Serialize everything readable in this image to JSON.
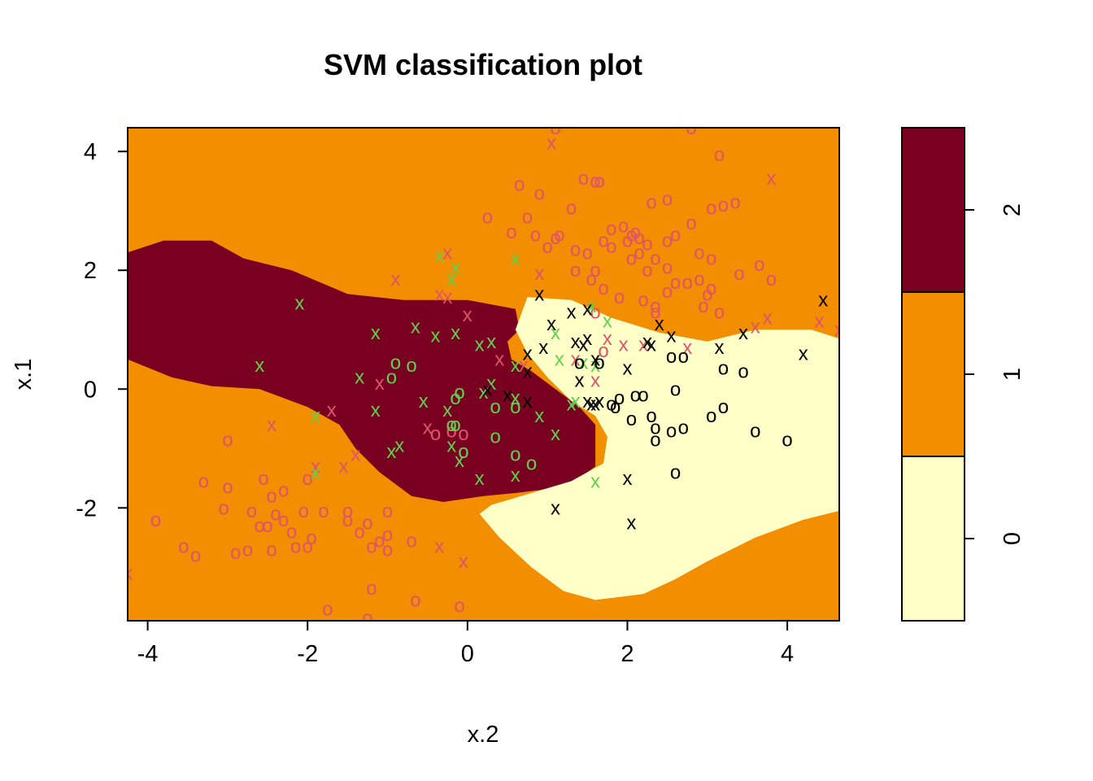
{
  "chart_data": {
    "type": "scatter",
    "title": "SVM classification plot",
    "xlabel": "x.2",
    "ylabel": "x.1",
    "xlim": [
      -4.25,
      4.65
    ],
    "ylim": [
      -3.9,
      4.4
    ],
    "x_ticks": [
      "-4",
      "-2",
      "0",
      "2",
      "4"
    ],
    "y_ticks": [
      "-2",
      "0",
      "2",
      "4"
    ],
    "x_tick_values": [
      -4,
      -2,
      0,
      2,
      4
    ],
    "y_tick_values": [
      -2,
      0,
      2,
      4
    ],
    "grid": false,
    "regions": [
      {
        "class": "2",
        "color": "#7A0022",
        "polygon": [
          [
            -4.25,
            2.3
          ],
          [
            -3.8,
            2.5
          ],
          [
            -3.2,
            2.5
          ],
          [
            -2.8,
            2.2
          ],
          [
            -2.2,
            2.0
          ],
          [
            -1.5,
            1.6
          ],
          [
            -0.8,
            1.5
          ],
          [
            0.0,
            1.5
          ],
          [
            0.6,
            1.35
          ],
          [
            0.65,
            1.0
          ],
          [
            0.5,
            0.8
          ],
          [
            0.55,
            0.5
          ],
          [
            0.8,
            0.3
          ],
          [
            1.1,
            0.0
          ],
          [
            1.4,
            -0.3
          ],
          [
            1.6,
            -0.6
          ],
          [
            1.6,
            -1.3
          ],
          [
            1.3,
            -1.6
          ],
          [
            0.9,
            -1.7
          ],
          [
            0.6,
            -1.75
          ],
          [
            0.2,
            -1.8
          ],
          [
            -0.3,
            -1.9
          ],
          [
            -0.7,
            -1.8
          ],
          [
            -1.1,
            -1.4
          ],
          [
            -1.4,
            -1.0
          ],
          [
            -1.6,
            -0.6
          ],
          [
            -2.0,
            -0.3
          ],
          [
            -2.6,
            0.0
          ],
          [
            -3.2,
            0.05
          ],
          [
            -3.7,
            0.2
          ],
          [
            -4.25,
            0.5
          ]
        ]
      },
      {
        "class": "0",
        "color": "#FFFFC8",
        "polygon": [
          [
            0.75,
            1.55
          ],
          [
            1.3,
            1.5
          ],
          [
            1.8,
            1.2
          ],
          [
            2.4,
            0.95
          ],
          [
            3.0,
            0.8
          ],
          [
            3.6,
            1.0
          ],
          [
            4.3,
            1.0
          ],
          [
            4.65,
            0.85
          ],
          [
            4.65,
            -2.05
          ],
          [
            4.2,
            -2.2
          ],
          [
            3.6,
            -2.5
          ],
          [
            3.0,
            -2.9
          ],
          [
            2.6,
            -3.2
          ],
          [
            2.2,
            -3.45
          ],
          [
            1.6,
            -3.55
          ],
          [
            1.2,
            -3.4
          ],
          [
            0.8,
            -3.0
          ],
          [
            0.4,
            -2.5
          ],
          [
            0.15,
            -2.1
          ],
          [
            0.3,
            -1.95
          ],
          [
            0.8,
            -1.75
          ],
          [
            1.3,
            -1.55
          ],
          [
            1.7,
            -1.25
          ],
          [
            1.75,
            -0.8
          ],
          [
            1.6,
            -0.45
          ],
          [
            1.3,
            -0.2
          ],
          [
            1.0,
            0.2
          ],
          [
            0.75,
            0.6
          ],
          [
            0.6,
            1.0
          ]
        ]
      }
    ],
    "background_class": "1",
    "background_color": "#F28E00",
    "legend": {
      "placement": "right",
      "colors": [
        "#FFFFC8",
        "#F28E00",
        "#7A0022"
      ],
      "labels": [
        "0",
        "1",
        "2"
      ]
    },
    "series": [
      {
        "symbol": "o",
        "color": "#DF536B",
        "points": [
          [
            1.1,
            4.4
          ],
          [
            2.8,
            4.4
          ],
          [
            3.15,
            3.95
          ],
          [
            1.45,
            3.55
          ],
          [
            0.65,
            3.45
          ],
          [
            0.9,
            3.3
          ],
          [
            1.6,
            3.5
          ],
          [
            1.65,
            3.5
          ],
          [
            2.5,
            3.2
          ],
          [
            2.3,
            3.15
          ],
          [
            3.05,
            3.05
          ],
          [
            3.2,
            3.1
          ],
          [
            3.35,
            3.15
          ],
          [
            1.3,
            3.05
          ],
          [
            0.25,
            2.9
          ],
          [
            0.75,
            2.9
          ],
          [
            2.1,
            2.65
          ],
          [
            1.8,
            2.7
          ],
          [
            1.95,
            2.75
          ],
          [
            2.8,
            2.8
          ],
          [
            0.55,
            2.65
          ],
          [
            0.85,
            2.6
          ],
          [
            1.1,
            2.55
          ],
          [
            1.15,
            2.6
          ],
          [
            1.35,
            2.35
          ],
          [
            1.5,
            2.3
          ],
          [
            1.7,
            2.5
          ],
          [
            2.0,
            2.5
          ],
          [
            2.05,
            2.6
          ],
          [
            2.15,
            2.55
          ],
          [
            2.25,
            2.45
          ],
          [
            2.35,
            2.2
          ],
          [
            2.5,
            2.5
          ],
          [
            2.6,
            2.6
          ],
          [
            2.9,
            2.3
          ],
          [
            3.05,
            2.2
          ],
          [
            1.0,
            2.4
          ],
          [
            1.35,
            2.0
          ],
          [
            1.55,
            1.85
          ],
          [
            1.7,
            1.7
          ],
          [
            1.6,
            2.0
          ],
          [
            1.8,
            2.4
          ],
          [
            2.05,
            2.2
          ],
          [
            2.15,
            2.3
          ],
          [
            2.25,
            2.0
          ],
          [
            2.5,
            2.05
          ],
          [
            2.6,
            1.8
          ],
          [
            2.75,
            1.8
          ],
          [
            2.9,
            1.85
          ],
          [
            3.4,
            1.95
          ],
          [
            3.65,
            2.1
          ],
          [
            3.8,
            1.85
          ],
          [
            3.0,
            1.6
          ],
          [
            3.05,
            1.7
          ],
          [
            2.5,
            1.65
          ],
          [
            2.35,
            1.4
          ],
          [
            2.35,
            1.3
          ],
          [
            2.95,
            1.4
          ],
          [
            3.15,
            1.3
          ],
          [
            1.9,
            1.55
          ],
          [
            1.6,
            1.3
          ],
          [
            2.2,
            1.5
          ],
          [
            1.7,
            0.65
          ],
          [
            -0.4,
            -0.75
          ],
          [
            -0.05,
            -0.75
          ],
          [
            -0.2,
            -0.7
          ],
          [
            -2.55,
            -1.5
          ],
          [
            -2.3,
            -1.7
          ],
          [
            -2.0,
            -1.5
          ],
          [
            -2.45,
            -1.8
          ],
          [
            -2.3,
            -2.2
          ],
          [
            -2.05,
            -2.05
          ],
          [
            -3.0,
            -0.85
          ],
          [
            -2.7,
            -2.05
          ],
          [
            -2.4,
            -2.1
          ],
          [
            -1.8,
            -2.05
          ],
          [
            -1.5,
            -2.05
          ],
          [
            -1.25,
            -2.25
          ],
          [
            -1.5,
            -2.2
          ],
          [
            -1.0,
            -2.05
          ],
          [
            -3.0,
            -1.65
          ],
          [
            -3.05,
            -2.0
          ],
          [
            -3.3,
            -1.55
          ],
          [
            -3.9,
            -2.2
          ],
          [
            -2.5,
            -2.3
          ],
          [
            -2.6,
            -2.3
          ],
          [
            -2.2,
            -2.4
          ],
          [
            -1.95,
            -2.5
          ],
          [
            -2.0,
            -2.65
          ],
          [
            -2.15,
            -2.65
          ],
          [
            -2.45,
            -2.7
          ],
          [
            -1.35,
            -2.4
          ],
          [
            -1.0,
            -2.45
          ],
          [
            -1.1,
            -2.55
          ],
          [
            -1.2,
            -2.65
          ],
          [
            -1.0,
            -2.7
          ],
          [
            -0.7,
            -2.55
          ],
          [
            -2.75,
            -2.7
          ],
          [
            -2.9,
            -2.75
          ],
          [
            -3.55,
            -2.65
          ],
          [
            -3.4,
            -2.8
          ],
          [
            -1.2,
            -3.35
          ],
          [
            -0.65,
            -3.55
          ],
          [
            -0.1,
            -3.65
          ],
          [
            -1.75,
            -3.7
          ],
          [
            -1.25,
            -3.85
          ]
        ]
      },
      {
        "symbol": "x",
        "color": "#DF536B",
        "points": [
          [
            1.05,
            4.15
          ],
          [
            3.8,
            3.55
          ],
          [
            -0.25,
            2.3
          ],
          [
            0.9,
            1.95
          ],
          [
            -0.9,
            1.85
          ],
          [
            -0.35,
            1.6
          ],
          [
            -0.25,
            1.55
          ],
          [
            0.0,
            1.25
          ],
          [
            1.55,
            1.4
          ],
          [
            3.75,
            1.2
          ],
          [
            4.4,
            1.15
          ],
          [
            4.65,
            1.0
          ],
          [
            3.6,
            1.05
          ],
          [
            1.75,
            0.85
          ],
          [
            1.95,
            0.75
          ],
          [
            2.2,
            0.75
          ],
          [
            2.75,
            0.7
          ],
          [
            1.35,
            0.5
          ],
          [
            0.4,
            0.5
          ],
          [
            0.7,
            0.4
          ],
          [
            -1.1,
            0.1
          ],
          [
            1.6,
            0.15
          ],
          [
            -1.7,
            -0.35
          ],
          [
            -2.45,
            -0.6
          ],
          [
            -0.5,
            -0.65
          ],
          [
            -1.4,
            -1.1
          ],
          [
            -1.55,
            -1.3
          ],
          [
            -1.9,
            -1.3
          ],
          [
            -0.35,
            -2.65
          ],
          [
            -0.05,
            -2.9
          ],
          [
            -4.25,
            -3.1
          ]
        ]
      },
      {
        "symbol": "o",
        "color": "#61D04F",
        "points": [
          [
            -0.9,
            0.45
          ],
          [
            -0.7,
            0.4
          ],
          [
            -0.95,
            0.2
          ],
          [
            -0.1,
            -0.05
          ],
          [
            -0.15,
            -0.15
          ],
          [
            0.35,
            -0.3
          ],
          [
            0.6,
            -0.3
          ],
          [
            0.35,
            -0.8
          ],
          [
            -0.15,
            -0.6
          ],
          [
            -0.2,
            -0.6
          ],
          [
            -0.05,
            -1.05
          ],
          [
            0.6,
            -1.1
          ],
          [
            0.8,
            -1.25
          ]
        ]
      },
      {
        "symbol": "x",
        "color": "#61D04F",
        "points": [
          [
            -0.35,
            2.25
          ],
          [
            -0.15,
            2.05
          ],
          [
            0.6,
            2.2
          ],
          [
            -0.2,
            1.85
          ],
          [
            -2.1,
            1.45
          ],
          [
            1.55,
            1.4
          ],
          [
            1.75,
            1.15
          ],
          [
            -1.15,
            0.95
          ],
          [
            -0.65,
            1.05
          ],
          [
            -0.4,
            0.9
          ],
          [
            -0.15,
            0.95
          ],
          [
            1.1,
            0.95
          ],
          [
            0.15,
            0.75
          ],
          [
            0.3,
            0.8
          ],
          [
            1.15,
            0.5
          ],
          [
            1.45,
            0.45
          ],
          [
            1.6,
            0.4
          ],
          [
            0.6,
            0.4
          ],
          [
            -2.6,
            0.4
          ],
          [
            -1.35,
            0.2
          ],
          [
            0.3,
            0.1
          ],
          [
            0.2,
            -0.05
          ],
          [
            0.6,
            -0.15
          ],
          [
            1.3,
            -0.25
          ],
          [
            1.35,
            -0.2
          ],
          [
            -0.55,
            -0.2
          ],
          [
            -1.15,
            -0.35
          ],
          [
            -1.9,
            -0.45
          ],
          [
            0.9,
            -0.45
          ],
          [
            -0.25,
            -0.35
          ],
          [
            1.1,
            -0.75
          ],
          [
            -0.85,
            -0.95
          ],
          [
            -0.95,
            -1.05
          ],
          [
            -0.2,
            -0.95
          ],
          [
            -0.1,
            -1.2
          ],
          [
            0.15,
            -1.5
          ],
          [
            0.6,
            -1.45
          ],
          [
            1.6,
            -1.55
          ],
          [
            -1.9,
            -1.4
          ]
        ]
      },
      {
        "symbol": "o",
        "color": "#000000",
        "points": [
          [
            2.7,
            0.55
          ],
          [
            2.55,
            0.55
          ],
          [
            3.2,
            0.35
          ],
          [
            3.45,
            0.3
          ],
          [
            1.4,
            0.45
          ],
          [
            1.65,
            0.45
          ],
          [
            2.6,
            0.0
          ],
          [
            2.2,
            -0.1
          ],
          [
            2.1,
            -0.1
          ],
          [
            1.9,
            -0.15
          ],
          [
            1.8,
            -0.25
          ],
          [
            1.85,
            -0.3
          ],
          [
            3.05,
            -0.45
          ],
          [
            3.2,
            -0.3
          ],
          [
            2.05,
            -0.5
          ],
          [
            2.3,
            -0.45
          ],
          [
            2.35,
            -0.65
          ],
          [
            2.55,
            -0.7
          ],
          [
            2.7,
            -0.65
          ],
          [
            2.35,
            -0.85
          ],
          [
            3.6,
            -0.7
          ],
          [
            4.0,
            -0.85
          ],
          [
            2.6,
            -1.4
          ]
        ]
      },
      {
        "symbol": "x",
        "color": "#000000",
        "points": [
          [
            0.9,
            1.6
          ],
          [
            1.5,
            1.35
          ],
          [
            1.3,
            1.3
          ],
          [
            1.05,
            1.1
          ],
          [
            2.4,
            1.1
          ],
          [
            3.45,
            0.95
          ],
          [
            2.55,
            0.9
          ],
          [
            1.5,
            0.85
          ],
          [
            1.35,
            0.8
          ],
          [
            1.45,
            0.75
          ],
          [
            2.25,
            0.8
          ],
          [
            2.3,
            0.75
          ],
          [
            3.15,
            0.7
          ],
          [
            4.2,
            0.6
          ],
          [
            0.75,
            0.6
          ],
          [
            0.95,
            0.7
          ],
          [
            1.6,
            0.5
          ],
          [
            2.0,
            0.35
          ],
          [
            0.75,
            0.3
          ],
          [
            1.4,
            0.15
          ],
          [
            0.25,
            0.0
          ],
          [
            0.5,
            -0.1
          ],
          [
            0.75,
            -0.2
          ],
          [
            1.5,
            -0.2
          ],
          [
            1.55,
            -0.25
          ],
          [
            1.6,
            -0.25
          ],
          [
            1.65,
            -0.2
          ],
          [
            4.45,
            1.5
          ],
          [
            1.1,
            -2.0
          ],
          [
            2.0,
            -1.5
          ],
          [
            2.05,
            -2.25
          ]
        ]
      }
    ]
  }
}
